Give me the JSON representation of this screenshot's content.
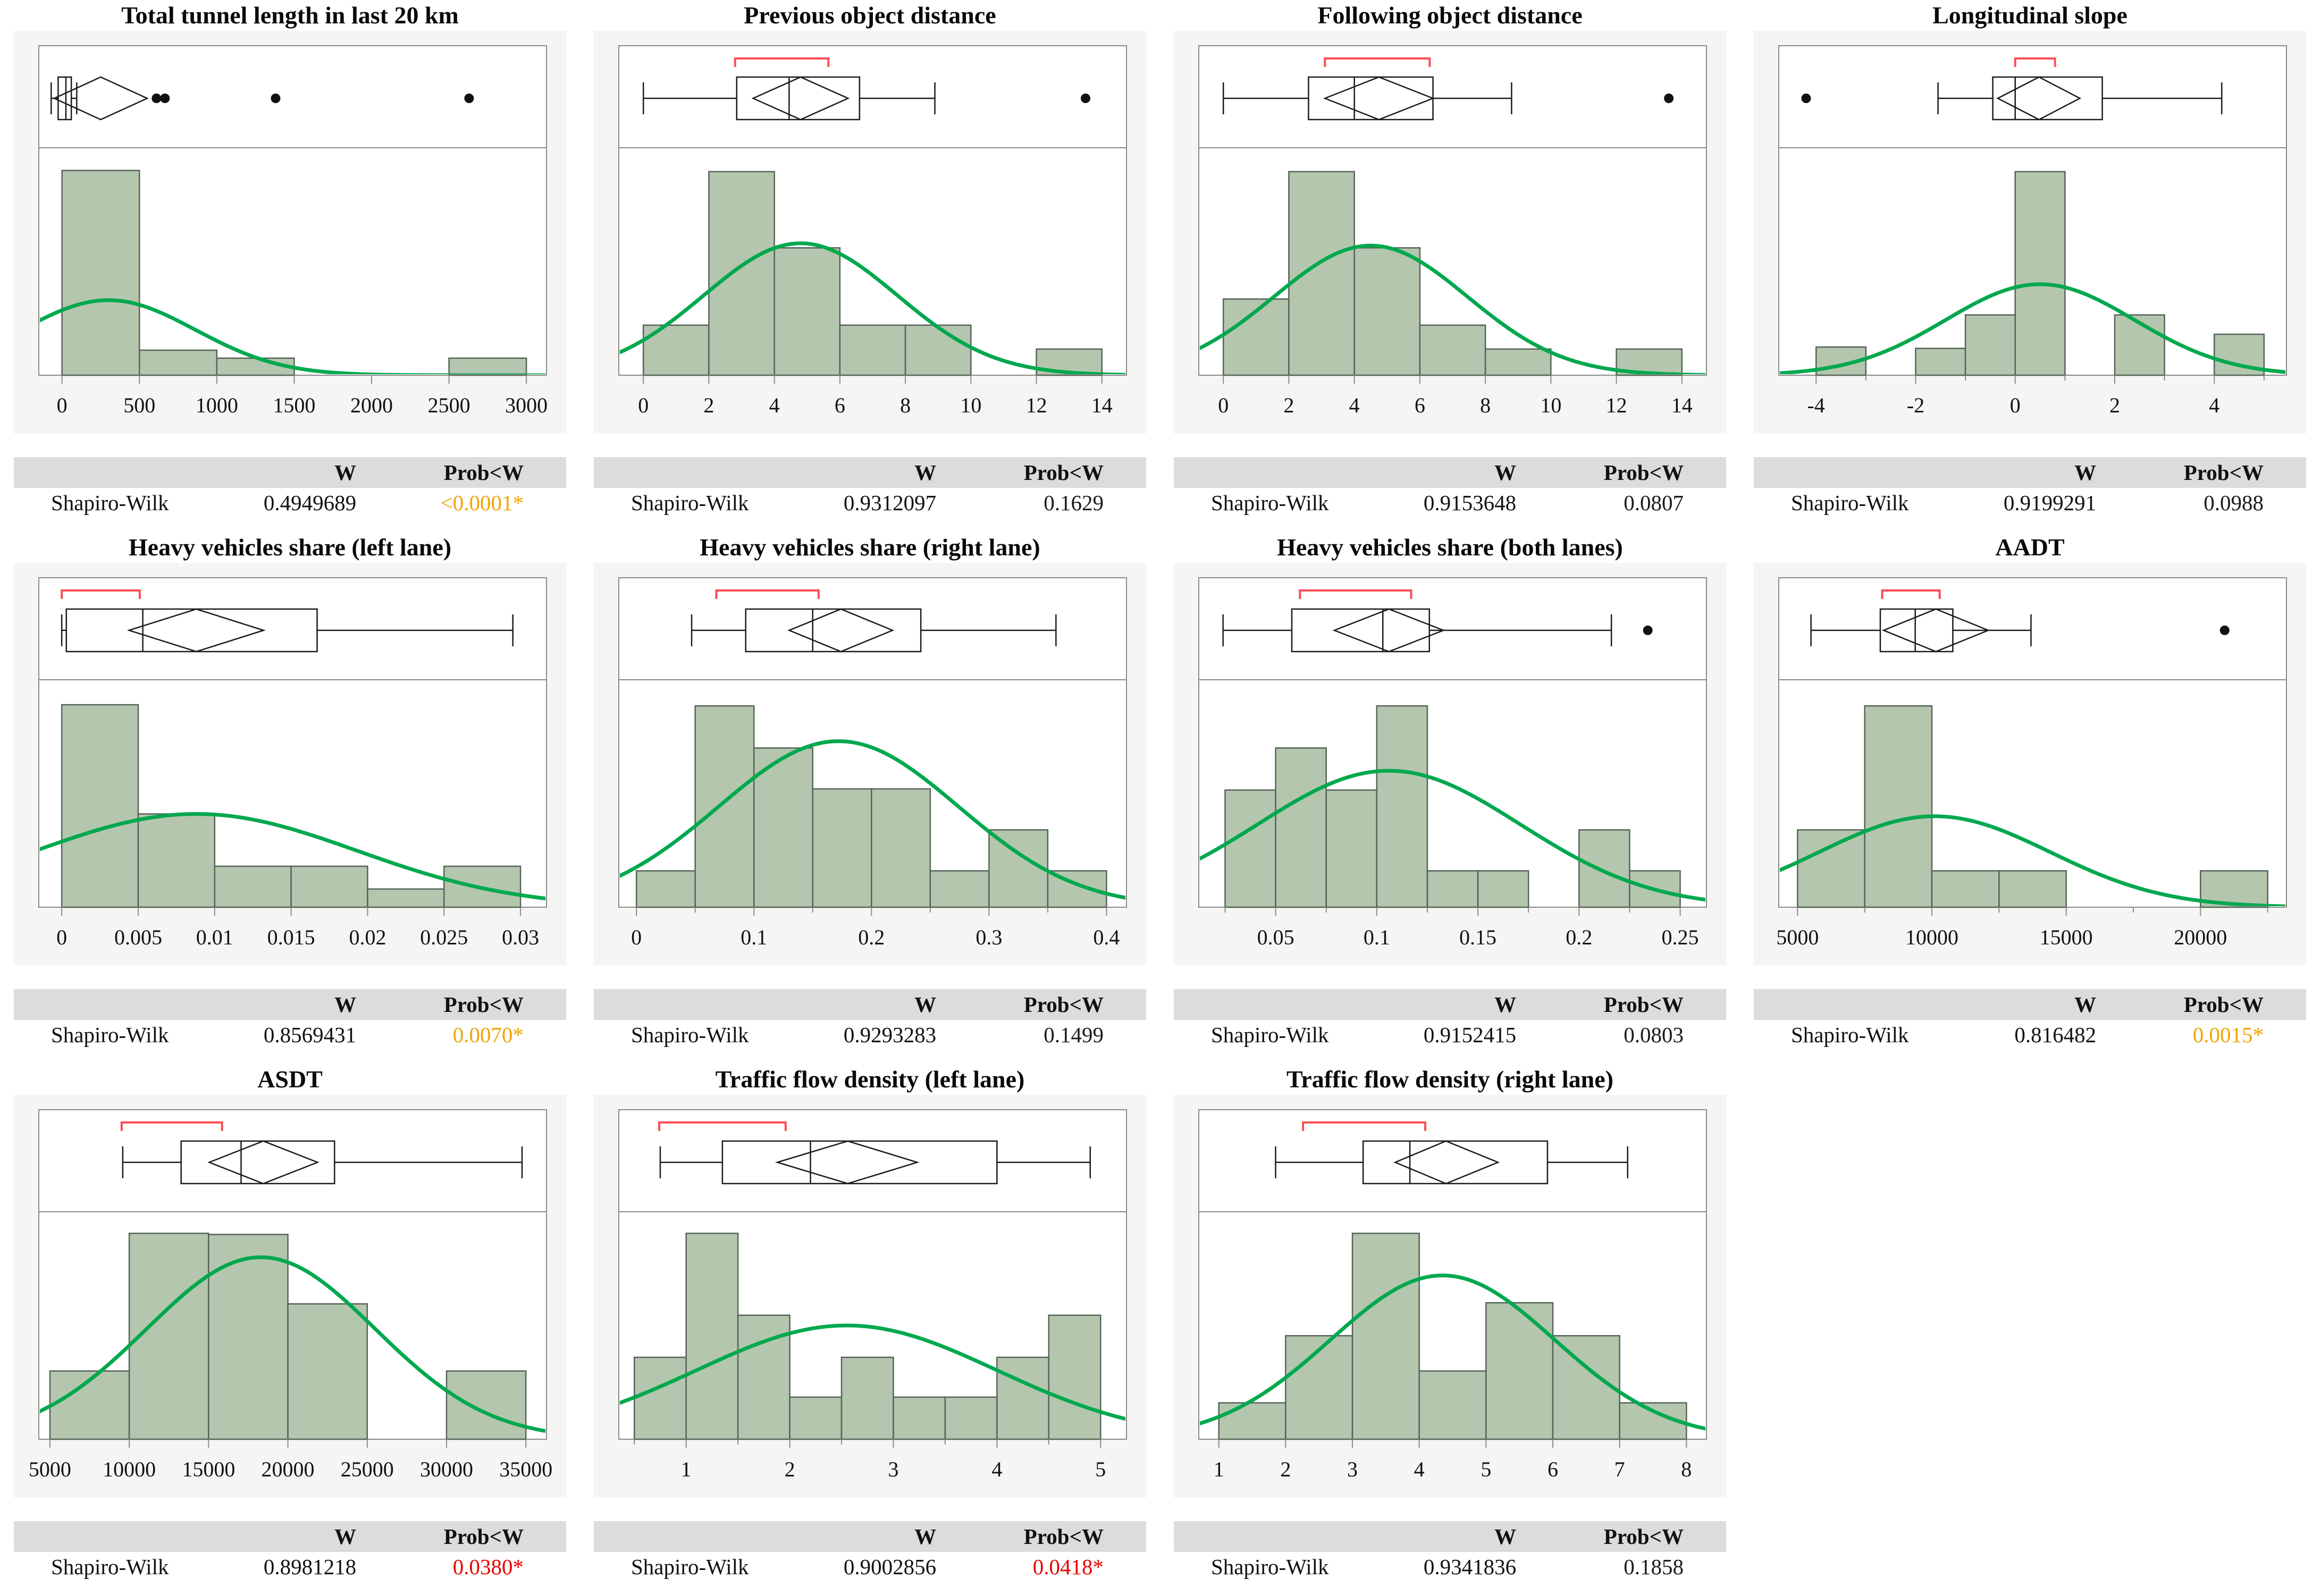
{
  "figure": {
    "description": "Grid of 11 distribution panels: histogram with normal curve, outlier box plot with mean diamond and shortest-half bracket, and Shapiro-Wilk normality test table",
    "rows": 3,
    "columns": 4
  },
  "table_headers": {
    "w": "W",
    "prob": "Prob<W"
  },
  "colors": {
    "bar_fill": "#b4c6ae",
    "bar_stroke": "#556458",
    "curve_green": "#00a84e",
    "bracket_red": "#fa4f55",
    "frame_gray": "#8a8a8a",
    "box_black": "#1a1a1a",
    "header_bg": "#dcdcdc",
    "panel_bg": "#f5f5f3",
    "sig_orange": "#f0a500",
    "sig_red": "#e80000",
    "text_black": "#1a1a1a"
  },
  "chart_data": [
    {
      "type": "bar",
      "variant": "histogram + outlier boxplot + normal curve",
      "title": "Total tunnel length in last 20 km",
      "xmin": -150,
      "xmax": 3130,
      "ticks": [
        {
          "v": 0,
          "label": "0"
        },
        {
          "v": 500,
          "label": "500"
        },
        {
          "v": 1000,
          "label": "1000"
        },
        {
          "v": 1500,
          "label": "1500"
        },
        {
          "v": 2000,
          "label": "2000"
        },
        {
          "v": 2500,
          "label": "2500"
        },
        {
          "v": 3000,
          "label": "3000"
        }
      ],
      "minor_ticks": [],
      "bins": [
        [
          0,
          500,
          0.9
        ],
        [
          500,
          1000,
          0.11
        ],
        [
          1000,
          1500,
          0.075
        ],
        [
          2500,
          3000,
          0.075
        ]
      ],
      "curve": {
        "mean": 300,
        "sd": 560,
        "peak": 0.33
      },
      "box": {
        "lo": -70,
        "q1": -25,
        "med": 25,
        "q3": 60,
        "hi": 95,
        "d1": -50,
        "dc": 250,
        "d3": 550,
        "outliers": [
          610,
          665,
          1380,
          2630
        ],
        "bracket": null
      },
      "shapiro": {
        "label": "Shapiro-Wilk",
        "w": "0.4949689",
        "prob": "<0.0001*",
        "prob_color": "#f0a500"
      }
    },
    {
      "type": "bar",
      "variant": "histogram + outlier boxplot + normal curve",
      "title": "Previous object distance",
      "xmin": -0.75,
      "xmax": 14.75,
      "ticks": [
        {
          "v": 0,
          "label": "0"
        },
        {
          "v": 2,
          "label": "2"
        },
        {
          "v": 4,
          "label": "4"
        },
        {
          "v": 6,
          "label": "6"
        },
        {
          "v": 8,
          "label": "8"
        },
        {
          "v": 10,
          "label": "10"
        },
        {
          "v": 12,
          "label": "12"
        },
        {
          "v": 14,
          "label": "14"
        }
      ],
      "minor_ticks": [],
      "bins": [
        [
          0,
          2,
          0.22
        ],
        [
          2,
          4,
          0.895
        ],
        [
          4,
          6,
          0.56
        ],
        [
          6,
          8,
          0.22
        ],
        [
          8,
          10,
          0.22
        ],
        [
          12,
          14,
          0.115
        ]
      ],
      "curve": {
        "mean": 4.8,
        "sd": 2.95,
        "peak": 0.58
      },
      "box": {
        "lo": 0,
        "q1": 2.85,
        "med": 4.45,
        "q3": 6.6,
        "hi": 8.9,
        "d1": 3.35,
        "dc": 4.8,
        "d3": 6.25,
        "outliers": [
          13.5
        ],
        "bracket": [
          2.8,
          5.65
        ]
      },
      "shapiro": {
        "label": "Shapiro-Wilk",
        "w": "0.9312097",
        "prob": "0.1629",
        "prob_color": "#1a1a1a"
      }
    },
    {
      "type": "bar",
      "variant": "histogram + outlier boxplot + normal curve",
      "title": "Following object distance",
      "xmin": -0.75,
      "xmax": 14.75,
      "ticks": [
        {
          "v": 0,
          "label": "0"
        },
        {
          "v": 2,
          "label": "2"
        },
        {
          "v": 4,
          "label": "4"
        },
        {
          "v": 6,
          "label": "6"
        },
        {
          "v": 8,
          "label": "8"
        },
        {
          "v": 10,
          "label": "10"
        },
        {
          "v": 12,
          "label": "12"
        },
        {
          "v": 14,
          "label": "14"
        }
      ],
      "minor_ticks": [],
      "bins": [
        [
          0,
          2,
          0.335
        ],
        [
          2,
          4,
          0.895
        ],
        [
          4,
          6,
          0.56
        ],
        [
          6,
          8,
          0.22
        ],
        [
          8,
          10,
          0.115
        ],
        [
          12,
          14,
          0.115
        ]
      ],
      "curve": {
        "mean": 4.5,
        "sd": 2.95,
        "peak": 0.57
      },
      "box": {
        "lo": 0,
        "q1": 2.6,
        "med": 4.0,
        "q3": 6.4,
        "hi": 8.8,
        "d1": 3.1,
        "dc": 4.75,
        "d3": 6.4,
        "outliers": [
          13.6
        ],
        "bracket": [
          3.1,
          6.3
        ]
      },
      "shapiro": {
        "label": "Shapiro-Wilk",
        "w": "0.9153648",
        "prob": "0.0807",
        "prob_color": "#1a1a1a"
      }
    },
    {
      "type": "bar",
      "variant": "histogram + outlier boxplot + normal curve",
      "title": "Longitudinal slope",
      "xmin": -4.75,
      "xmax": 5.45,
      "ticks": [
        {
          "v": -4,
          "label": "-4"
        },
        {
          "v": -2,
          "label": "-2"
        },
        {
          "v": 0,
          "label": "0"
        },
        {
          "v": 2,
          "label": "2"
        },
        {
          "v": 4,
          "label": "4"
        }
      ],
      "minor_ticks": [
        -3,
        -1,
        1,
        3,
        5
      ],
      "bins": [
        [
          -4,
          -3,
          0.124
        ],
        [
          -2,
          -1,
          0.118
        ],
        [
          -1,
          0,
          0.265
        ],
        [
          0,
          1,
          0.895
        ],
        [
          2,
          3,
          0.265
        ],
        [
          4,
          5,
          0.18
        ]
      ],
      "curve": {
        "mean": 0.5,
        "sd": 1.9,
        "peak": 0.4
      },
      "box": {
        "lo": -1.55,
        "q1": -0.45,
        "med": 0,
        "q3": 1.75,
        "hi": 4.15,
        "d1": -0.35,
        "dc": 0.48,
        "d3": 1.3,
        "outliers": [
          -4.2
        ],
        "bracket": [
          0,
          0.8
        ]
      },
      "shapiro": {
        "label": "Shapiro-Wilk",
        "w": "0.9199291",
        "prob": "0.0988",
        "prob_color": "#1a1a1a"
      }
    },
    {
      "type": "bar",
      "variant": "histogram + outlier boxplot + normal curve",
      "title": "Heavy vehicles share (left lane)",
      "xmin": -0.0015,
      "xmax": 0.0317,
      "ticks": [
        {
          "v": 0,
          "label": "0"
        },
        {
          "v": 0.005,
          "label": "0.005"
        },
        {
          "v": 0.01,
          "label": "0.01"
        },
        {
          "v": 0.015,
          "label": "0.015"
        },
        {
          "v": 0.02,
          "label": "0.02"
        },
        {
          "v": 0.025,
          "label": "0.025"
        },
        {
          "v": 0.03,
          "label": "0.03"
        }
      ],
      "minor_ticks": [],
      "bins": [
        [
          0,
          0.005,
          0.89
        ],
        [
          0.005,
          0.01,
          0.41
        ],
        [
          0.01,
          0.015,
          0.18
        ],
        [
          0.015,
          0.02,
          0.18
        ],
        [
          0.02,
          0.025,
          0.08
        ],
        [
          0.025,
          0.03,
          0.18
        ]
      ],
      "curve": {
        "mean": 0.0088,
        "sd": 0.0105,
        "peak": 0.41
      },
      "box": {
        "lo": 0,
        "q1": 0.0003,
        "med": 0.0053,
        "q3": 0.0167,
        "hi": 0.0295,
        "d1": 0.0044,
        "dc": 0.0088,
        "d3": 0.0132,
        "outliers": [],
        "bracket": [
          0,
          0.0051
        ]
      },
      "shapiro": {
        "label": "Shapiro-Wilk",
        "w": "0.8569431",
        "prob": "0.0070*",
        "prob_color": "#f0a500"
      }
    },
    {
      "type": "bar",
      "variant": "histogram + outlier boxplot + normal curve",
      "title": "Heavy vehicles share (right lane)",
      "xmin": -0.015,
      "xmax": 0.417,
      "ticks": [
        {
          "v": 0,
          "label": "0"
        },
        {
          "v": 0.1,
          "label": "0.1"
        },
        {
          "v": 0.2,
          "label": "0.2"
        },
        {
          "v": 0.3,
          "label": "0.3"
        },
        {
          "v": 0.4,
          "label": "0.4"
        }
      ],
      "minor_ticks": [
        0.05,
        0.15,
        0.25,
        0.35
      ],
      "bins": [
        [
          0,
          0.05,
          0.16
        ],
        [
          0.05,
          0.1,
          0.885
        ],
        [
          0.1,
          0.15,
          0.7
        ],
        [
          0.15,
          0.2,
          0.52
        ],
        [
          0.2,
          0.25,
          0.52
        ],
        [
          0.25,
          0.3,
          0.16
        ],
        [
          0.3,
          0.35,
          0.34
        ],
        [
          0.35,
          0.4,
          0.16
        ]
      ],
      "curve": {
        "mean": 0.172,
        "sd": 0.102,
        "peak": 0.73
      },
      "box": {
        "lo": 0.047,
        "q1": 0.093,
        "med": 0.15,
        "q3": 0.242,
        "hi": 0.357,
        "d1": 0.13,
        "dc": 0.174,
        "d3": 0.218,
        "outliers": [],
        "bracket": [
          0.068,
          0.155
        ]
      },
      "shapiro": {
        "label": "Shapiro-Wilk",
        "w": "0.9293283",
        "prob": "0.1499",
        "prob_color": "#1a1a1a"
      }
    },
    {
      "type": "bar",
      "variant": "histogram + outlier boxplot + normal curve",
      "title": "Heavy vehicles share (both lanes)",
      "xmin": 0.012,
      "xmax": 0.263,
      "ticks": [
        {
          "v": 0.05,
          "label": "0.05"
        },
        {
          "v": 0.1,
          "label": "0.1"
        },
        {
          "v": 0.15,
          "label": "0.15"
        },
        {
          "v": 0.2,
          "label": "0.2"
        },
        {
          "v": 0.25,
          "label": "0.25"
        }
      ],
      "minor_ticks": [
        0.025,
        0.075,
        0.125,
        0.175,
        0.225
      ],
      "bins": [
        [
          0.025,
          0.05,
          0.515
        ],
        [
          0.05,
          0.075,
          0.7
        ],
        [
          0.075,
          0.1,
          0.515
        ],
        [
          0.1,
          0.125,
          0.885
        ],
        [
          0.125,
          0.15,
          0.16
        ],
        [
          0.15,
          0.175,
          0.16
        ],
        [
          0.2,
          0.225,
          0.34
        ],
        [
          0.225,
          0.25,
          0.16
        ]
      ],
      "curve": {
        "mean": 0.106,
        "sd": 0.065,
        "peak": 0.6
      },
      "box": {
        "lo": 0.024,
        "q1": 0.058,
        "med": 0.103,
        "q3": 0.126,
        "hi": 0.216,
        "d1": 0.079,
        "dc": 0.106,
        "d3": 0.133,
        "outliers": [
          0.234
        ],
        "bracket": [
          0.062,
          0.117
        ]
      },
      "shapiro": {
        "label": "Shapiro-Wilk",
        "w": "0.9152415",
        "prob": "0.0803",
        "prob_color": "#1a1a1a"
      }
    },
    {
      "type": "bar",
      "variant": "histogram + outlier boxplot + normal curve",
      "title": "AADT",
      "xmin": 4300,
      "xmax": 23200,
      "ticks": [
        {
          "v": 5000,
          "label": "5000"
        },
        {
          "v": 10000,
          "label": "10000"
        },
        {
          "v": 15000,
          "label": "15000"
        },
        {
          "v": 20000,
          "label": "20000"
        }
      ],
      "minor_ticks": [
        7500,
        12500,
        17500,
        22500
      ],
      "bins": [
        [
          5000,
          7500,
          0.34
        ],
        [
          7500,
          10000,
          0.885
        ],
        [
          10000,
          12500,
          0.16
        ],
        [
          12500,
          15000,
          0.16
        ],
        [
          20000,
          22500,
          0.16
        ]
      ],
      "curve": {
        "mean": 10100,
        "sd": 4300,
        "peak": 0.4
      },
      "box": {
        "lo": 5500,
        "q1": 8080,
        "med": 9380,
        "q3": 10780,
        "hi": 13690,
        "d1": 8200,
        "dc": 10150,
        "d3": 12100,
        "outliers": [
          20900
        ],
        "bracket": [
          8150,
          10290
        ]
      },
      "shapiro": {
        "label": "Shapiro-Wilk",
        "w": "0.816482",
        "prob": "0.0015*",
        "prob_color": "#f0a500"
      }
    },
    {
      "type": "bar",
      "variant": "histogram + outlier boxplot + normal curve",
      "title": "ASDT",
      "xmin": 4300,
      "xmax": 36300,
      "ticks": [
        {
          "v": 5000,
          "label": "5000"
        },
        {
          "v": 10000,
          "label": "10000"
        },
        {
          "v": 15000,
          "label": "15000"
        },
        {
          "v": 20000,
          "label": "20000"
        },
        {
          "v": 25000,
          "label": "25000"
        },
        {
          "v": 30000,
          "label": "30000"
        },
        {
          "v": 35000,
          "label": "35000"
        }
      ],
      "minor_ticks": [],
      "bins": [
        [
          5000,
          10000,
          0.3
        ],
        [
          10000,
          15000,
          0.905
        ],
        [
          15000,
          20000,
          0.9
        ],
        [
          20000,
          25000,
          0.595
        ],
        [
          30000,
          35000,
          0.3
        ]
      ],
      "curve": {
        "mean": 18300,
        "sd": 7200,
        "peak": 0.8
      },
      "box": {
        "lo": 9590,
        "q1": 13270,
        "med": 17050,
        "q3": 22940,
        "hi": 34760,
        "d1": 15040,
        "dc": 18450,
        "d3": 21870,
        "outliers": [],
        "bracket": [
          9520,
          15850
        ]
      },
      "shapiro": {
        "label": "Shapiro-Wilk",
        "w": "0.8981218",
        "prob": "0.0380*",
        "prob_color": "#e80000"
      }
    },
    {
      "type": "bar",
      "variant": "histogram + outlier boxplot + normal curve",
      "title": "Traffic flow density (left lane)",
      "xmin": 0.35,
      "xmax": 5.25,
      "ticks": [
        {
          "v": 1,
          "label": "1"
        },
        {
          "v": 2,
          "label": "2"
        },
        {
          "v": 3,
          "label": "3"
        },
        {
          "v": 4,
          "label": "4"
        },
        {
          "v": 5,
          "label": "5"
        }
      ],
      "minor_ticks": [
        0.5,
        1.5,
        2.5,
        3.5,
        4.5
      ],
      "bins": [
        [
          0.5,
          1,
          0.36
        ],
        [
          1,
          1.5,
          0.905
        ],
        [
          1.5,
          2,
          0.545
        ],
        [
          2,
          2.5,
          0.185
        ],
        [
          2.5,
          3,
          0.36
        ],
        [
          3,
          3.5,
          0.185
        ],
        [
          3.5,
          4,
          0.185
        ],
        [
          4,
          4.5,
          0.36
        ],
        [
          4.5,
          5,
          0.545
        ]
      ],
      "curve": {
        "mean": 2.55,
        "sd": 1.45,
        "peak": 0.5
      },
      "box": {
        "lo": 0.75,
        "q1": 1.35,
        "med": 2.2,
        "q3": 4.0,
        "hi": 4.9,
        "d1": 1.88,
        "dc": 2.56,
        "d3": 3.23,
        "outliers": [],
        "bracket": [
          0.74,
          1.96
        ]
      },
      "shapiro": {
        "label": "Shapiro-Wilk",
        "w": "0.9002856",
        "prob": "0.0418*",
        "prob_color": "#e80000"
      }
    },
    {
      "type": "bar",
      "variant": "histogram + outlier boxplot + normal curve",
      "title": "Traffic flow density (right lane)",
      "xmin": 0.7,
      "xmax": 8.3,
      "ticks": [
        {
          "v": 1,
          "label": "1"
        },
        {
          "v": 2,
          "label": "2"
        },
        {
          "v": 3,
          "label": "3"
        },
        {
          "v": 4,
          "label": "4"
        },
        {
          "v": 5,
          "label": "5"
        },
        {
          "v": 6,
          "label": "6"
        },
        {
          "v": 7,
          "label": "7"
        },
        {
          "v": 8,
          "label": "8"
        }
      ],
      "minor_ticks": [],
      "bins": [
        [
          1,
          2,
          0.16
        ],
        [
          2,
          3,
          0.455
        ],
        [
          3,
          4,
          0.905
        ],
        [
          4,
          5,
          0.3
        ],
        [
          5,
          6,
          0.6
        ],
        [
          6,
          7,
          0.455
        ],
        [
          7,
          8,
          0.16
        ]
      ],
      "curve": {
        "mean": 4.35,
        "sd": 1.68,
        "peak": 0.72
      },
      "box": {
        "lo": 1.85,
        "q1": 3.16,
        "med": 3.86,
        "q3": 5.92,
        "hi": 7.12,
        "d1": 3.64,
        "dc": 4.4,
        "d3": 5.18,
        "outliers": [],
        "bracket": [
          2.26,
          4.09
        ]
      },
      "shapiro": {
        "label": "Shapiro-Wilk",
        "w": "0.9341836",
        "prob": "0.1858",
        "prob_color": "#1a1a1a"
      }
    }
  ]
}
